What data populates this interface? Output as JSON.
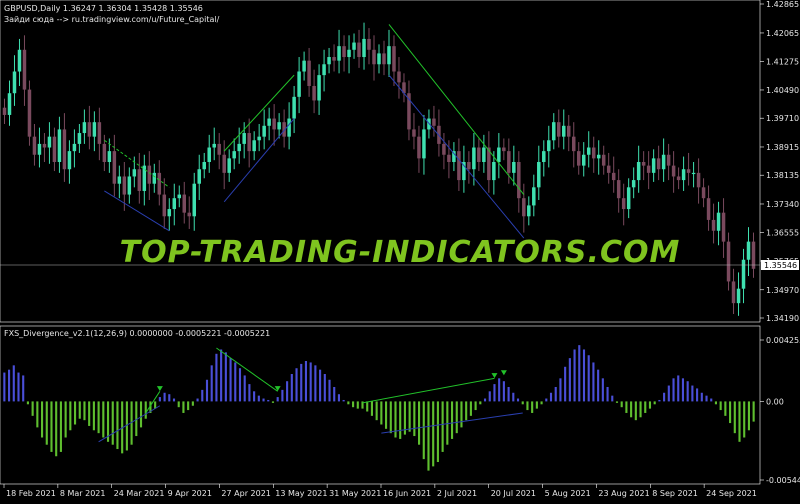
{
  "main_chart": {
    "header_line1": "GBPUSD,Daily  1.36247 1.36304 1.35428 1.35546",
    "header_line2": "Зайди сюда --> ru.tradingview.com/u/Future_Capital/",
    "watermark": "TOP-TRADING-INDICATORS.COM",
    "current_price_label": "1.35546",
    "y_tick_labels": [
      "1.42865",
      "1.42065",
      "1.41275",
      "1.40490",
      "1.39710",
      "1.38915",
      "1.38135",
      "1.37340",
      "1.36555",
      "1.35765",
      "1.34970",
      "1.34190"
    ]
  },
  "indicator_panel": {
    "title": "FXS_Divergence_v2.1(12,26,9) 0.0000000 -0.0005221 -0.0005221",
    "y_tick_labels": [
      "0.0042559",
      "0.00",
      "-0.0054458"
    ]
  },
  "x_axis_labels": [
    "18 Feb 2021",
    "8 Mar 2021",
    "24 Mar 2021",
    "9 Apr 2021",
    "27 Apr 2021",
    "13 May 2021",
    "31 May 2021",
    "16 Jun 2021",
    "2 Jul 2021",
    "20 Jul 2021",
    "5 Aug 2021",
    "23 Aug 2021",
    "8 Sep 2021",
    "24 Sep 2021"
  ],
  "colors": {
    "background": "#000000",
    "bull_candle": "#3fe0b0",
    "bear_candle": "#7a4a5e",
    "hist_positive": "#4a4fd8",
    "hist_negative": "#5fbf2f",
    "divergence_line": "#22c22a",
    "divergence_line_blue": "#2a3fb0",
    "watermark": "#7fc41f",
    "axis": "#ffffff"
  },
  "chart_data": {
    "type": "candlestick",
    "symbol": "GBPUSD",
    "timeframe": "Daily",
    "ylim": [
      1.3419,
      1.42865
    ],
    "current_price": 1.35546,
    "ohlc_close": [
      1.398,
      1.404,
      1.41,
      1.416,
      1.405,
      1.392,
      1.387,
      1.39,
      1.389,
      1.392,
      1.385,
      1.394,
      1.383,
      1.388,
      1.39,
      1.393,
      1.396,
      1.392,
      1.396,
      1.39,
      1.385,
      1.388,
      1.379,
      1.381,
      1.376,
      1.381,
      1.383,
      1.377,
      1.384,
      1.379,
      1.382,
      1.376,
      1.37,
      1.372,
      1.375,
      1.376,
      1.371,
      1.37,
      1.379,
      1.383,
      1.385,
      1.389,
      1.39,
      1.387,
      1.382,
      1.386,
      1.388,
      1.39,
      1.393,
      1.388,
      1.391,
      1.392,
      1.395,
      1.397,
      1.394,
      1.396,
      1.392,
      1.397,
      1.403,
      1.41,
      1.413,
      1.406,
      1.402,
      1.409,
      1.412,
      1.414,
      1.413,
      1.417,
      1.414,
      1.416,
      1.418,
      1.414,
      1.419,
      1.416,
      1.412,
      1.415,
      1.412,
      1.417,
      1.41,
      1.407,
      1.404,
      1.394,
      1.392,
      1.386,
      1.394,
      1.397,
      1.395,
      1.39,
      1.387,
      1.385,
      1.388,
      1.38,
      1.385,
      1.383,
      1.389,
      1.385,
      1.389,
      1.38,
      1.385,
      1.389,
      1.388,
      1.382,
      1.385,
      1.375,
      1.37,
      1.373,
      1.378,
      1.385,
      1.388,
      1.391,
      1.396,
      1.392,
      1.395,
      1.392,
      1.388,
      1.384,
      1.387,
      1.389,
      1.386,
      1.387,
      1.384,
      1.382,
      1.38,
      1.375,
      1.372,
      1.378,
      1.38,
      1.385,
      1.384,
      1.382,
      1.386,
      1.383,
      1.387,
      1.384,
      1.381,
      1.38,
      1.383,
      1.382,
      1.382,
      1.378,
      1.375,
      1.369,
      1.366,
      1.371,
      1.363,
      1.352,
      1.346,
      1.35,
      1.358,
      1.363,
      1.3555
    ],
    "divergence_lines_price": [
      {
        "color": "green",
        "from_index": 20,
        "to_index": 33
      },
      {
        "color": "green",
        "from_index": 44,
        "to_index": 58
      },
      {
        "color": "green",
        "from_index": 77,
        "to_index": 104
      }
    ]
  },
  "indicator_data": {
    "type": "histogram",
    "ylim": [
      -0.0054458,
      0.0042559
    ],
    "values": [
      0.002,
      0.0022,
      0.0025,
      0.002,
      0.0018,
      -0.0002,
      -0.001,
      -0.0018,
      -0.0025,
      -0.003,
      -0.0035,
      -0.0038,
      -0.0035,
      -0.0025,
      -0.002,
      -0.0016,
      -0.0012,
      -0.0013,
      -0.0017,
      -0.002,
      -0.0022,
      -0.0025,
      -0.0028,
      -0.003,
      -0.0033,
      -0.0036,
      -0.0034,
      -0.003,
      -0.0024,
      -0.0018,
      -0.0012,
      -0.0008,
      -0.0005,
      0.0003,
      0.0006,
      0.0005,
      0.0002,
      -0.0004,
      -0.0008,
      -0.0006,
      -0.0003,
      0.0002,
      0.0008,
      0.0015,
      0.0025,
      0.0033,
      0.0036,
      0.0034,
      0.003,
      0.0027,
      0.0023,
      0.0018,
      0.0012,
      0.0007,
      0.0004,
      0.0002,
      0.0001,
      -0.0001,
      0.0003,
      0.0008,
      0.0014,
      0.0019,
      0.0023,
      0.0026,
      0.0028,
      0.0027,
      0.0025,
      0.0022,
      0.0019,
      0.0015,
      0.001,
      0.0005,
      0.0001,
      -0.0002,
      -0.0004,
      -0.0005,
      -0.0005,
      -0.0007,
      -0.001,
      -0.0013,
      -0.0016,
      -0.0019,
      -0.0022,
      -0.0025,
      -0.0026,
      -0.0023,
      -0.0021,
      -0.0024,
      -0.003,
      -0.004,
      -0.0048,
      -0.0045,
      -0.0042,
      -0.0035,
      -0.003,
      -0.0026,
      -0.0022,
      -0.0018,
      -0.0013,
      -0.001,
      -0.0006,
      -0.0002,
      0.0002,
      0.0007,
      0.0012,
      0.0016,
      0.0014,
      0.001,
      0.0006,
      0.0002,
      -0.0002,
      -0.0006,
      -0.0008,
      -0.0005,
      -0.0002,
      0.0002,
      0.0006,
      0.001,
      0.0016,
      0.0024,
      0.003,
      0.0036,
      0.0039,
      0.0036,
      0.0032,
      0.0027,
      0.0022,
      0.0016,
      0.001,
      0.0004,
      -0.0001,
      -0.0004,
      -0.0008,
      -0.0011,
      -0.0013,
      -0.0011,
      -0.0008,
      -0.0005,
      -0.0002,
      0.0001,
      0.0006,
      0.0011,
      0.0016,
      0.0018,
      0.0016,
      0.0014,
      0.0011,
      0.0009,
      0.0006,
      0.0004,
      0.0002,
      -0.0002,
      -0.0006,
      -0.001,
      -0.0015,
      -0.0022,
      -0.0028,
      -0.0025,
      -0.002,
      -0.0014
    ]
  }
}
